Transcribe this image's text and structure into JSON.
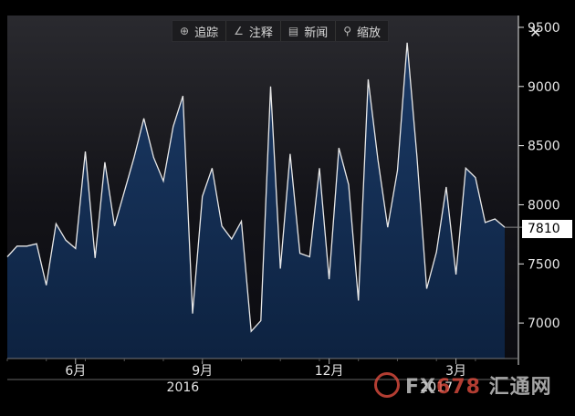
{
  "toolbar": {
    "items": [
      {
        "icon": "crosshair-icon",
        "glyph": "⊕",
        "label": "追踪"
      },
      {
        "icon": "pencil-icon",
        "glyph": "∠",
        "label": "注释"
      },
      {
        "icon": "news-icon",
        "glyph": "▤",
        "label": "新闻"
      },
      {
        "icon": "search-icon",
        "glyph": "⚲",
        "label": "缩放"
      }
    ],
    "close_glyph": "✕"
  },
  "last_value_label": "7810",
  "watermark": {
    "text_a": "FX",
    "text_b": "678",
    "text_c": " 汇通网"
  },
  "colors": {
    "line": "#e8e8e8",
    "fill_top": "#1b3a66",
    "fill_bottom": "#0d2240",
    "axis": "#e6e6e6"
  },
  "chart_data": {
    "type": "area",
    "ylim": [
      6700,
      9600
    ],
    "yticks": [
      7000,
      7500,
      8000,
      8500,
      9000,
      9500
    ],
    "ytick_labels": [
      "7000",
      "7500",
      "8000",
      "8500",
      "9000",
      "9500"
    ],
    "xticks": [
      {
        "label": "6月",
        "at": 7
      },
      {
        "label": "9月",
        "at": 20
      },
      {
        "label": "12月",
        "at": 33
      },
      {
        "label": "3月",
        "at": 46
      }
    ],
    "years": [
      {
        "label": "2016",
        "at": 18
      },
      {
        "label": "2017",
        "at": 44
      }
    ],
    "series": [
      {
        "values": [
          7560,
          7650,
          7650,
          7670,
          7320,
          7840,
          7700,
          7630,
          8450,
          7550,
          8360,
          7820,
          8110,
          8400,
          8730,
          8400,
          8200,
          8660,
          8920,
          7080,
          8070,
          8310,
          7820,
          7710,
          7860,
          6930,
          7020,
          9000,
          7460,
          8430,
          7590,
          7560,
          8310,
          7370,
          8480,
          8170,
          7190,
          9060,
          8380,
          7810,
          8290,
          9370,
          8410,
          7290,
          7600,
          8150,
          7410,
          8310,
          8230,
          7850,
          7880,
          7810
        ]
      }
    ]
  }
}
